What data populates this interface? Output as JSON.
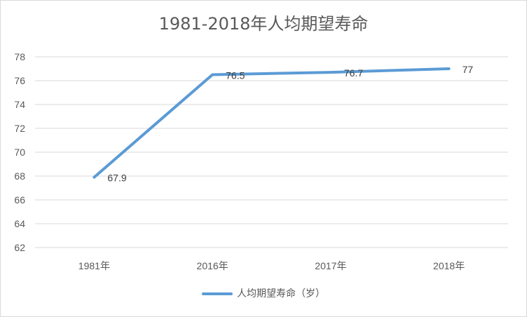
{
  "chart_data": {
    "type": "line",
    "title": "1981-2018年人均期望寿命",
    "categories": [
      "1981年",
      "2016年",
      "2017年",
      "2018年"
    ],
    "series": [
      {
        "name": "人均期望寿命（岁）",
        "values": [
          67.9,
          76.5,
          76.7,
          77
        ],
        "color": "#5b9bd5"
      }
    ],
    "data_labels": [
      "67.9",
      "76.5",
      "76.7",
      "77"
    ],
    "xlabel": "",
    "ylabel": "",
    "ylim": [
      62,
      78
    ],
    "yticks": [
      "62",
      "64",
      "66",
      "68",
      "70",
      "72",
      "74",
      "76",
      "78"
    ],
    "grid": true,
    "legend_position": "bottom"
  }
}
